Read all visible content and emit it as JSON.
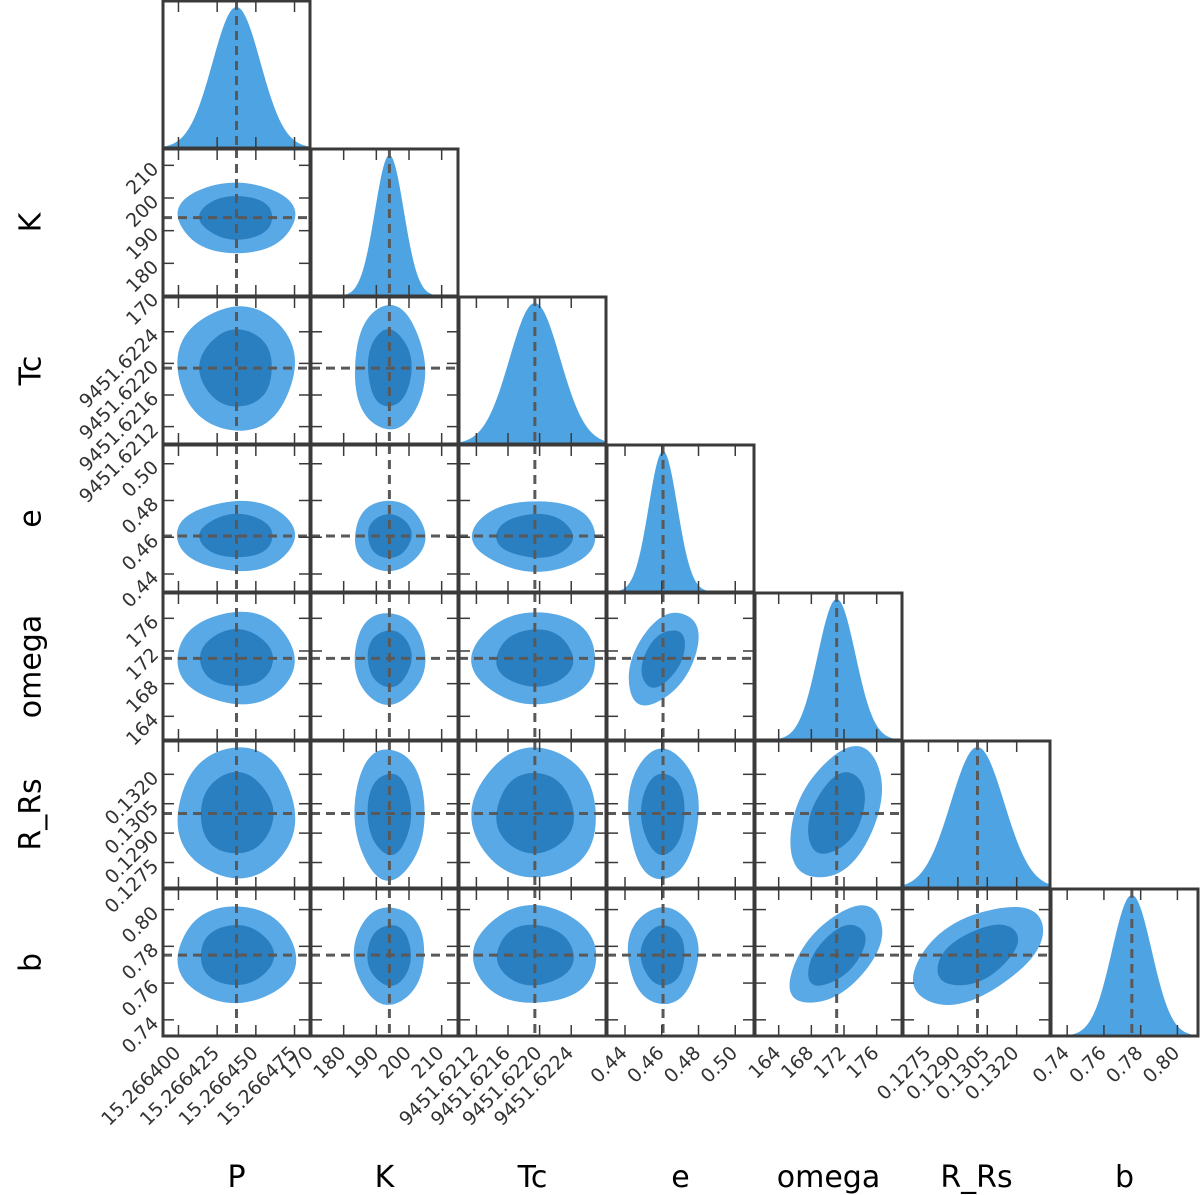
{
  "chart_data": {
    "type": "corner",
    "parameters": [
      {
        "name": "P",
        "label": "P",
        "truth": 15.2664375,
        "mean": 15.2664375,
        "sd": 1.55e-05,
        "range": [
          15.26639,
          15.266485
        ],
        "ticks": [
          15.2664,
          15.266425,
          15.26645,
          15.266475
        ],
        "tick_labels": [
          "15.266400",
          "15.266425",
          "15.266450",
          "15.266475"
        ]
      },
      {
        "name": "K",
        "label": "K",
        "truth": 194,
        "mean": 194,
        "sd": 4.4,
        "range": [
          170,
          215
        ],
        "ticks": [
          170,
          180,
          190,
          200,
          210
        ],
        "tick_labels": [
          "170",
          "180",
          "190",
          "200",
          "210"
        ]
      },
      {
        "name": "Tc",
        "label": "Tc",
        "truth": 9451.62194,
        "mean": 9451.62194,
        "sd": 0.00032,
        "range": [
          9451.62098,
          9451.62284
        ],
        "ticks": [
          9451.6212,
          9451.6216,
          9451.622,
          9451.6224
        ],
        "tick_labels": [
          "9451.6212",
          "9451.6216",
          "9451.6220",
          "9451.6224"
        ]
      },
      {
        "name": "e",
        "label": "e",
        "truth": 0.4607,
        "mean": 0.4607,
        "sd": 0.0078,
        "range": [
          0.4302,
          0.5102
        ],
        "ticks": [
          0.44,
          0.46,
          0.48,
          0.5
        ],
        "tick_labels": [
          "0.44",
          "0.46",
          "0.48",
          "0.50"
        ]
      },
      {
        "name": "omega",
        "label": "omega",
        "truth": 171.1,
        "mean": 171.1,
        "sd": 2.3,
        "range": [
          161.1,
          179.1
        ],
        "ticks": [
          164,
          168,
          172,
          176
        ],
        "tick_labels": [
          "164",
          "168",
          "172",
          "176"
        ]
      },
      {
        "name": "R_Rs",
        "label": "R_Rs",
        "truth": 0.13,
        "mean": 0.13,
        "sd": 0.00136,
        "range": [
          0.1262,
          0.1337
        ],
        "ticks": [
          0.1275,
          0.129,
          0.1305,
          0.132
        ],
        "tick_labels": [
          "0.1275",
          "0.1290",
          "0.1305",
          "0.1320"
        ]
      },
      {
        "name": "b",
        "label": "b",
        "truth": 0.7752,
        "mean": 0.7752,
        "sd": 0.0108,
        "range": [
          0.7312,
          0.8112
        ],
        "ticks": [
          0.74,
          0.76,
          0.78,
          0.8
        ],
        "tick_labels": [
          "0.74",
          "0.76",
          "0.78",
          "0.80"
        ]
      }
    ],
    "correlations": [
      {
        "x": "e",
        "y": "omega",
        "rho": 0.45
      },
      {
        "x": "omega",
        "y": "R_Rs",
        "rho": 0.4
      },
      {
        "x": "omega",
        "y": "b",
        "rho": 0.55
      },
      {
        "x": "R_Rs",
        "y": "b",
        "rho": 0.5
      }
    ],
    "contour_levels_sigma": [
      1,
      2
    ],
    "truth_line_style": "dashed",
    "colors": {
      "fill_outer": "#59a9e6",
      "fill_inner": "#2a7fc1",
      "hist_fill": "#4ea3e3",
      "truth_line": "#595959",
      "frame": "#3a3a3a",
      "tick": "#3a3a3a"
    }
  }
}
